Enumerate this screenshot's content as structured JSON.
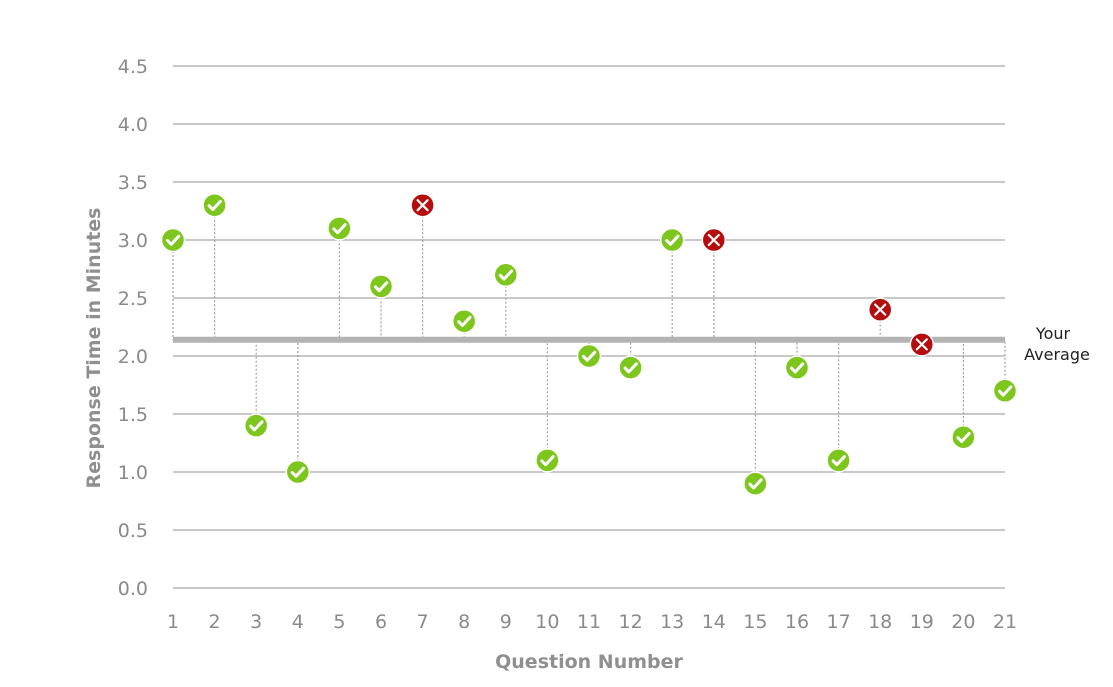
{
  "chart_data": {
    "type": "scatter",
    "title": "",
    "xlabel": "Question Number",
    "ylabel": "Response Time in Minutes",
    "xlim": [
      1,
      21
    ],
    "ylim": [
      0,
      4.5
    ],
    "yticks": [
      "0.0",
      "0.5",
      "1.0",
      "1.5",
      "2.0",
      "2.5",
      "3.0",
      "3.5",
      "4.0",
      "4.5"
    ],
    "xticks": [
      "1",
      "2",
      "3",
      "4",
      "5",
      "6",
      "7",
      "8",
      "9",
      "10",
      "11",
      "12",
      "13",
      "14",
      "15",
      "16",
      "17",
      "18",
      "19",
      "20",
      "21"
    ],
    "grid": true,
    "average": {
      "value": 2.14,
      "label_line1": "Your",
      "label_line2": "Average"
    },
    "points": [
      {
        "x": 1,
        "y": 3.0,
        "correct": true
      },
      {
        "x": 2,
        "y": 3.3,
        "correct": true
      },
      {
        "x": 3,
        "y": 1.4,
        "correct": true
      },
      {
        "x": 4,
        "y": 1.0,
        "correct": true
      },
      {
        "x": 5,
        "y": 3.1,
        "correct": true
      },
      {
        "x": 6,
        "y": 2.6,
        "correct": true
      },
      {
        "x": 7,
        "y": 3.3,
        "correct": false
      },
      {
        "x": 8,
        "y": 2.3,
        "correct": true
      },
      {
        "x": 9,
        "y": 2.7,
        "correct": true
      },
      {
        "x": 10,
        "y": 1.1,
        "correct": true
      },
      {
        "x": 11,
        "y": 2.0,
        "correct": true
      },
      {
        "x": 12,
        "y": 1.9,
        "correct": true
      },
      {
        "x": 13,
        "y": 3.0,
        "correct": true
      },
      {
        "x": 14,
        "y": 3.0,
        "correct": false
      },
      {
        "x": 15,
        "y": 0.9,
        "correct": true
      },
      {
        "x": 16,
        "y": 1.9,
        "correct": true
      },
      {
        "x": 17,
        "y": 1.1,
        "correct": true
      },
      {
        "x": 18,
        "y": 2.4,
        "correct": false
      },
      {
        "x": 19,
        "y": 2.1,
        "correct": false
      },
      {
        "x": 20,
        "y": 1.3,
        "correct": true
      },
      {
        "x": 21,
        "y": 1.7,
        "correct": true
      }
    ],
    "colors": {
      "correct": "#7dc61e",
      "incorrect": "#b50d0d",
      "grid": "#a6a6a6",
      "average_line": "#b3b3b3",
      "stem": "#a0a0a0"
    },
    "icons": {
      "correct": "check-icon",
      "incorrect": "cross-icon"
    }
  }
}
